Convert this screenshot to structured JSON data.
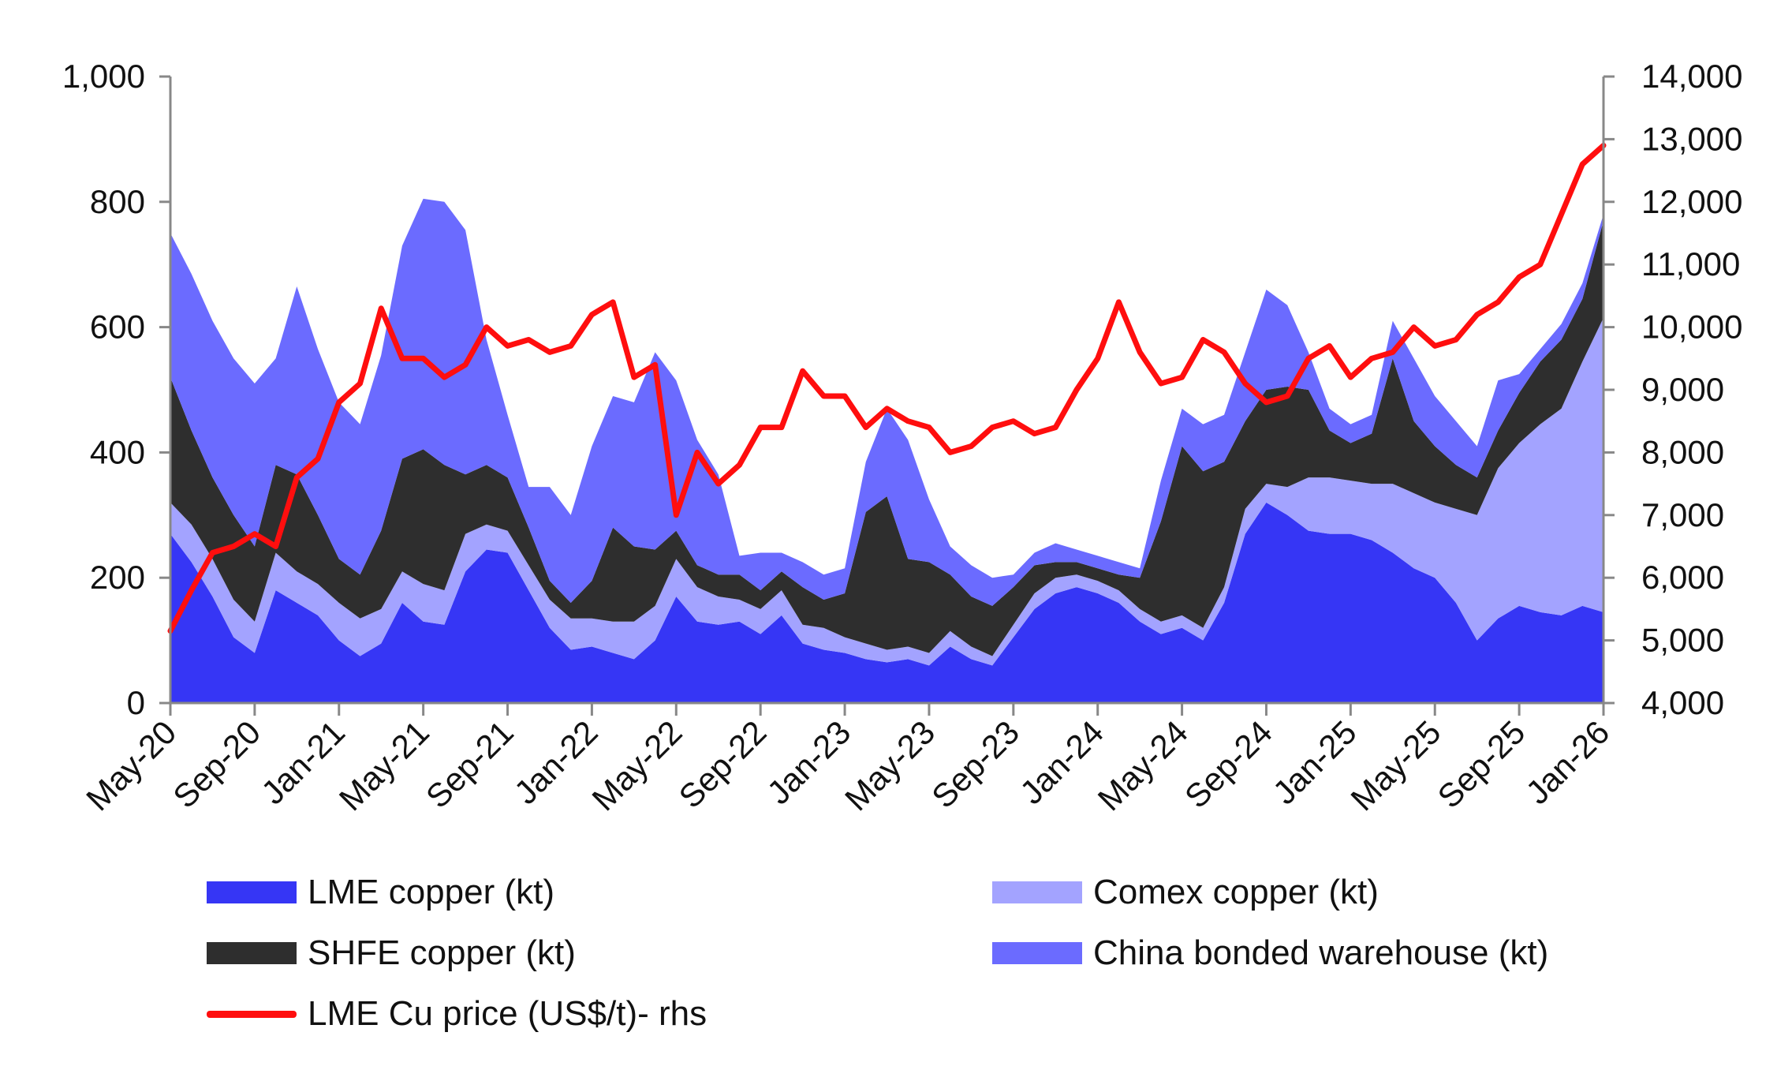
{
  "chart_data": {
    "type": "area",
    "title": "",
    "xlabel": "",
    "ylabel": "",
    "ylabel_right": "",
    "ylim": [
      0,
      1000
    ],
    "ylim_right": [
      4000,
      14000
    ],
    "y_ticks": [
      "0",
      "200",
      "400",
      "600",
      "800",
      "1,000"
    ],
    "y_ticks_right": [
      "4,000",
      "5,000",
      "6,000",
      "7,000",
      "8,000",
      "9,000",
      "10,000",
      "11,000",
      "12,000",
      "13,000",
      "14,000"
    ],
    "x_tick_labels": [
      "May-20",
      "Sep-20",
      "Jan-21",
      "May-21",
      "Sep-21",
      "Jan-22",
      "May-22",
      "Sep-22",
      "Jan-23",
      "May-23",
      "Sep-23",
      "Jan-24",
      "May-24",
      "Sep-24",
      "Jan-25",
      "May-25",
      "Sep-25",
      "Jan-26"
    ],
    "x_months": [
      0,
      1,
      2,
      3,
      4,
      5,
      6,
      7,
      8,
      9,
      10,
      11,
      12,
      13,
      14,
      15,
      16,
      17,
      18,
      19,
      20,
      21,
      22,
      23,
      24,
      25,
      26,
      27,
      28,
      29,
      30,
      31,
      32,
      33,
      34,
      35,
      36,
      37,
      38,
      39,
      40,
      41,
      42,
      43,
      44,
      45,
      46,
      47,
      48,
      49,
      50,
      51,
      52,
      53,
      54,
      55,
      56,
      57,
      58,
      59,
      60,
      61,
      62,
      63,
      64,
      65,
      66,
      67,
      68
    ],
    "series": [
      {
        "name": "LME copper (kt)",
        "color": "#3636F5",
        "values": [
          270,
          225,
          170,
          105,
          80,
          180,
          160,
          140,
          100,
          75,
          95,
          160,
          130,
          125,
          210,
          245,
          240,
          180,
          120,
          85,
          90,
          80,
          70,
          100,
          170,
          130,
          125,
          130,
          110,
          140,
          95,
          85,
          80,
          70,
          65,
          70,
          60,
          90,
          70,
          60,
          105,
          150,
          175,
          185,
          175,
          160,
          130,
          110,
          120,
          100,
          160,
          270,
          320,
          300,
          275,
          270,
          270,
          260,
          240,
          215,
          200,
          160,
          100,
          135,
          155,
          145,
          140,
          155,
          145
        ]
      },
      {
        "name": "Comex copper (kt)",
        "color": "#A3A3FF",
        "values": [
          50,
          60,
          60,
          60,
          50,
          60,
          50,
          50,
          60,
          60,
          55,
          50,
          60,
          55,
          60,
          40,
          35,
          40,
          45,
          50,
          45,
          50,
          60,
          55,
          60,
          55,
          45,
          35,
          40,
          40,
          30,
          35,
          25,
          25,
          20,
          20,
          20,
          25,
          20,
          15,
          20,
          25,
          25,
          20,
          20,
          20,
          20,
          20,
          20,
          20,
          25,
          40,
          30,
          45,
          85,
          90,
          85,
          90,
          110,
          120,
          120,
          150,
          200,
          240,
          260,
          300,
          330,
          390,
          470
        ]
      },
      {
        "name": "SHFE copper (kt)",
        "color": "#2E2E2E",
        "values": [
          200,
          150,
          130,
          135,
          120,
          140,
          155,
          110,
          70,
          70,
          125,
          180,
          215,
          200,
          95,
          95,
          85,
          60,
          30,
          25,
          60,
          150,
          120,
          90,
          45,
          35,
          35,
          40,
          30,
          30,
          60,
          45,
          70,
          210,
          245,
          140,
          145,
          90,
          80,
          80,
          60,
          45,
          25,
          20,
          20,
          25,
          50,
          160,
          270,
          250,
          200,
          140,
          150,
          160,
          140,
          75,
          60,
          80,
          200,
          115,
          90,
          70,
          60,
          60,
          80,
          100,
          110,
          100,
          155
        ]
      },
      {
        "name": "China bonded warehouse (kt)",
        "color": "#6B6BFF",
        "values": [
          230,
          250,
          250,
          250,
          260,
          170,
          300,
          265,
          250,
          240,
          280,
          340,
          400,
          420,
          390,
          200,
          100,
          65,
          150,
          140,
          215,
          210,
          230,
          315,
          240,
          200,
          160,
          30,
          60,
          30,
          40,
          40,
          40,
          80,
          140,
          190,
          100,
          45,
          50,
          45,
          20,
          20,
          30,
          20,
          20,
          20,
          15,
          65,
          60,
          75,
          75,
          110,
          160,
          130,
          60,
          35,
          30,
          30,
          60,
          100,
          80,
          70,
          50,
          80,
          30,
          20,
          25,
          25,
          10
        ]
      },
      {
        "name": "LME Cu price (US$/t)- rhs",
        "color": "#FF0E0E",
        "axis": "right",
        "values": [
          5150,
          5800,
          6400,
          6500,
          6700,
          6500,
          7600,
          7900,
          8800,
          9100,
          10300,
          9500,
          9500,
          9200,
          9400,
          10000,
          9700,
          9800,
          9600,
          9700,
          10200,
          10400,
          9200,
          9400,
          7000,
          8000,
          7500,
          7800,
          8400,
          8400,
          9300,
          8900,
          8900,
          8400,
          8700,
          8500,
          8400,
          8000,
          8100,
          8400,
          8500,
          8300,
          8400,
          9000,
          9500,
          10400,
          9600,
          9100,
          9200,
          9800,
          9600,
          9100,
          8800,
          8900,
          9500,
          9700,
          9200,
          9500,
          9600,
          10000,
          9700,
          9800,
          10200,
          10400,
          10800,
          11000,
          11800,
          12600,
          12900
        ]
      }
    ],
    "legend": [
      {
        "label": "LME copper (kt)",
        "marker": "area",
        "color": "#3636F5"
      },
      {
        "label": "Comex copper (kt)",
        "marker": "area",
        "color": "#A3A3FF"
      },
      {
        "label": "SHFE copper (kt)",
        "marker": "area",
        "color": "#2E2E2E"
      },
      {
        "label": "China bonded warehouse (kt)",
        "marker": "area",
        "color": "#6B6BFF"
      },
      {
        "label": "LME Cu price (US$/t)- rhs",
        "marker": "line",
        "color": "#FF0E0E"
      }
    ],
    "legend_position": "bottom",
    "stacked": true
  }
}
